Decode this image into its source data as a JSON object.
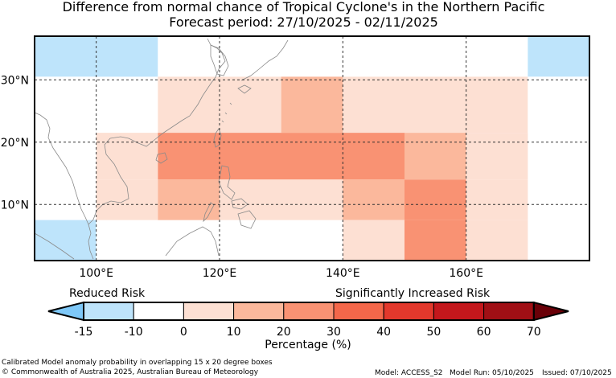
{
  "title": {
    "line1": "Difference from normal chance of Tropical Cyclone's in the Northern Pacific",
    "line2": "Forecast period: 27/10/2025 - 02/11/2025"
  },
  "map": {
    "lon_range": [
      90,
      180
    ],
    "lat_range": [
      1,
      37
    ],
    "lat_ticks": [
      {
        "value": 30,
        "label": "30°N"
      },
      {
        "value": 20,
        "label": "20°N"
      },
      {
        "value": 10,
        "label": "10°N"
      }
    ],
    "lon_ticks": [
      {
        "value": 100,
        "label": "100°E"
      },
      {
        "value": 120,
        "label": "120°E"
      },
      {
        "value": 140,
        "label": "140°E"
      },
      {
        "value": 160,
        "label": "160°E"
      }
    ],
    "cells": [
      {
        "lon": [
          90,
          100
        ],
        "lat": [
          30.5,
          37
        ],
        "level": -15
      },
      {
        "lon": [
          100,
          110
        ],
        "lat": [
          30.5,
          37
        ],
        "level": -15
      },
      {
        "lon": [
          110,
          120
        ],
        "lat": [
          30.5,
          37
        ],
        "level": -10
      },
      {
        "lon": [
          170,
          180
        ],
        "lat": [
          30.5,
          37
        ],
        "level": -15
      },
      {
        "lon": [
          90,
          100
        ],
        "lat": [
          21.5,
          30.5
        ],
        "level": -10
      },
      {
        "lon": [
          110,
          130
        ],
        "lat": [
          21.5,
          30.5
        ],
        "level": 0
      },
      {
        "lon": [
          130,
          140
        ],
        "lat": [
          21.5,
          30.5
        ],
        "level": 10
      },
      {
        "lon": [
          140,
          170
        ],
        "lat": [
          21.5,
          30.5
        ],
        "level": 0
      },
      {
        "lon": [
          170,
          180
        ],
        "lat": [
          21.5,
          30.5
        ],
        "level": -10
      },
      {
        "lon": [
          100,
          110
        ],
        "lat": [
          14,
          21.5
        ],
        "level": 0
      },
      {
        "lon": [
          110,
          150
        ],
        "lat": [
          14,
          21.5
        ],
        "level": 20
      },
      {
        "lon": [
          150,
          160
        ],
        "lat": [
          14,
          21.5
        ],
        "level": 10
      },
      {
        "lon": [
          160,
          170
        ],
        "lat": [
          14,
          21.5
        ],
        "level": 0
      },
      {
        "lon": [
          100,
          110
        ],
        "lat": [
          7.5,
          14
        ],
        "level": 0
      },
      {
        "lon": [
          110,
          120
        ],
        "lat": [
          7.5,
          14
        ],
        "level": 10
      },
      {
        "lon": [
          120,
          140
        ],
        "lat": [
          7.5,
          14
        ],
        "level": 0
      },
      {
        "lon": [
          140,
          150
        ],
        "lat": [
          7.5,
          14
        ],
        "level": 10
      },
      {
        "lon": [
          150,
          160
        ],
        "lat": [
          7.5,
          14
        ],
        "level": 20
      },
      {
        "lon": [
          160,
          170
        ],
        "lat": [
          7.5,
          14
        ],
        "level": 0
      },
      {
        "lon": [
          90,
          100
        ],
        "lat": [
          1,
          7.5
        ],
        "level": -15
      },
      {
        "lon": [
          140,
          150
        ],
        "lat": [
          1,
          7.5
        ],
        "level": 0
      },
      {
        "lon": [
          150,
          160
        ],
        "lat": [
          1,
          7.5
        ],
        "level": 20
      },
      {
        "lon": [
          160,
          170
        ],
        "lat": [
          1,
          7.5
        ],
        "level": 0
      }
    ]
  },
  "colorbar": {
    "reduced_label": "Reduced Risk",
    "increased_label": "Significantly Increased Risk",
    "ticks": [
      "-15",
      "-10",
      "0",
      "10",
      "20",
      "30",
      "40",
      "50",
      "60",
      "70"
    ],
    "bins": [
      {
        "level": -20,
        "color": "#7ec8f8"
      },
      {
        "level": -15,
        "color": "#bee4fb"
      },
      {
        "level": -10,
        "color": "#ffffff"
      },
      {
        "level": 0,
        "color": "#fde0d3"
      },
      {
        "level": 10,
        "color": "#fbb89c"
      },
      {
        "level": 20,
        "color": "#f99273"
      },
      {
        "level": 30,
        "color": "#f4674a"
      },
      {
        "level": 40,
        "color": "#e3382c"
      },
      {
        "level": 50,
        "color": "#c4171c"
      },
      {
        "level": 60,
        "color": "#a00f15"
      },
      {
        "level": 70,
        "color": "#6a0008"
      }
    ],
    "axis_label": "Percentage (%)"
  },
  "footer": {
    "note": "Calibrated Model anomaly probability in overlapping 15 x 20 degree boxes",
    "copyright": "© Commonwealth of Australia 2025, Australian Bureau of Meteorology",
    "model": "Model: ACCESS_S2",
    "model_run": "Model Run: 05/10/2025",
    "issued": "Issued: 07/10/2025"
  }
}
